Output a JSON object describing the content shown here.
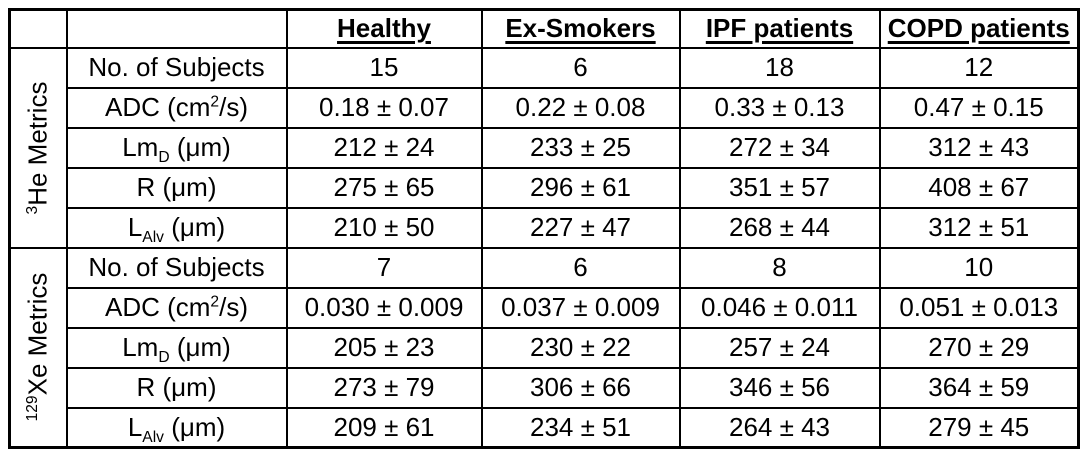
{
  "table": {
    "description_colors": {
      "border": "#000000",
      "background": "#ffffff",
      "text": "#000000"
    },
    "column_headers": [
      "Healthy",
      "Ex-Smokers",
      "IPF patients",
      "COPD patients"
    ],
    "sections": [
      {
        "label_plain": "3He Metrics",
        "label_segments": [
          {
            "t": "3",
            "v": "sup"
          },
          {
            "t": "He Metrics",
            "v": "normal"
          }
        ],
        "rows": [
          {
            "label_plain": "No. of Subjects",
            "label_segments": [
              {
                "t": "No. of Subjects",
                "v": "normal"
              }
            ],
            "values": [
              "15",
              "6",
              "18",
              "12"
            ]
          },
          {
            "label_plain": "ADC (cm2/s)",
            "label_segments": [
              {
                "t": "ADC (cm",
                "v": "normal"
              },
              {
                "t": "2",
                "v": "sup"
              },
              {
                "t": "/s)",
                "v": "normal"
              }
            ],
            "values": [
              "0.18 ± 0.07",
              "0.22 ± 0.08",
              "0.33 ± 0.13",
              "0.47 ± 0.15"
            ]
          },
          {
            "label_plain": "LmD (μm)",
            "label_segments": [
              {
                "t": "Lm",
                "v": "normal"
              },
              {
                "t": "D",
                "v": "sub"
              },
              {
                "t": " (μm)",
                "v": "normal"
              }
            ],
            "values": [
              "212 ± 24",
              "233 ± 25",
              "272 ± 34",
              "312 ± 43"
            ]
          },
          {
            "label_plain": "R (μm)",
            "label_segments": [
              {
                "t": "R (μm)",
                "v": "normal"
              }
            ],
            "values": [
              "275 ± 65",
              "296 ± 61",
              "351 ± 57",
              "408 ± 67"
            ]
          },
          {
            "label_plain": "LAlv (μm)",
            "label_segments": [
              {
                "t": "L",
                "v": "normal"
              },
              {
                "t": "Alv",
                "v": "sub"
              },
              {
                "t": " (μm)",
                "v": "normal"
              }
            ],
            "values": [
              "210 ± 50",
              "227 ± 47",
              "268 ± 44",
              "312 ± 51"
            ]
          }
        ]
      },
      {
        "label_plain": "129Xe Metrics",
        "label_segments": [
          {
            "t": "129",
            "v": "sup"
          },
          {
            "t": "Xe Metrics",
            "v": "normal"
          }
        ],
        "rows": [
          {
            "label_plain": "No. of Subjects",
            "label_segments": [
              {
                "t": "No. of Subjects",
                "v": "normal"
              }
            ],
            "values": [
              "7",
              "6",
              "8",
              "10"
            ]
          },
          {
            "label_plain": "ADC (cm2/s)",
            "label_segments": [
              {
                "t": "ADC (cm",
                "v": "normal"
              },
              {
                "t": "2",
                "v": "sup"
              },
              {
                "t": "/s)",
                "v": "normal"
              }
            ],
            "values": [
              "0.030 ± 0.009",
              "0.037 ± 0.009",
              "0.046 ± 0.011",
              "0.051 ± 0.013"
            ]
          },
          {
            "label_plain": "LmD (μm)",
            "label_segments": [
              {
                "t": "Lm",
                "v": "normal"
              },
              {
                "t": "D",
                "v": "sub"
              },
              {
                "t": " (μm)",
                "v": "normal"
              }
            ],
            "values": [
              "205 ± 23",
              "230 ± 22",
              "257 ± 24",
              "270 ± 29"
            ]
          },
          {
            "label_plain": "R (μm)",
            "label_segments": [
              {
                "t": "R (μm)",
                "v": "normal"
              }
            ],
            "values": [
              "273 ± 79",
              "306 ± 66",
              "346 ± 56",
              "364 ± 59"
            ]
          },
          {
            "label_plain": "LAlv (μm)",
            "label_segments": [
              {
                "t": "L",
                "v": "normal"
              },
              {
                "t": "Alv",
                "v": "sub"
              },
              {
                "t": " (μm)",
                "v": "normal"
              }
            ],
            "values": [
              "209 ± 61",
              "234 ± 51",
              "264 ± 43",
              "279 ± 45"
            ]
          }
        ]
      }
    ]
  }
}
